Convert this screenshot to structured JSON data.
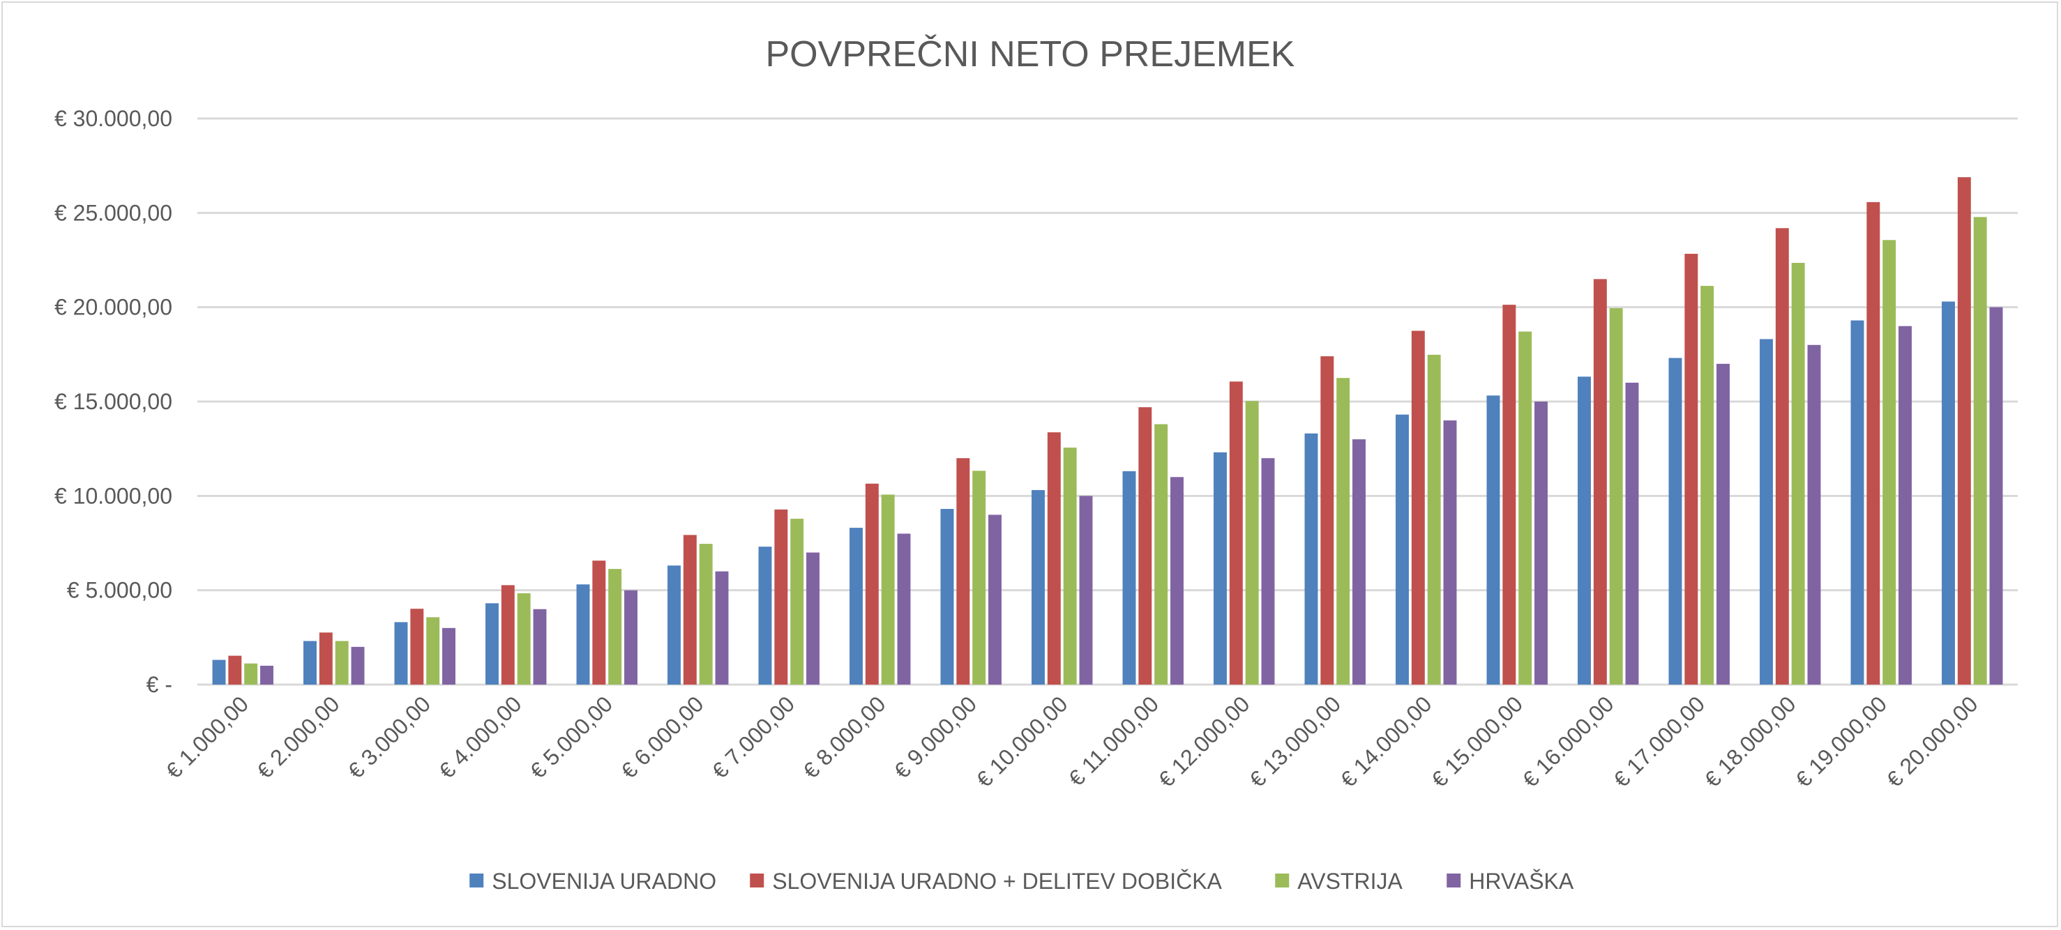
{
  "chart_data": {
    "type": "bar",
    "title": "POVPREČNI NETO PREJEMEK",
    "xlabel": "",
    "ylabel": "",
    "ylim": [
      0,
      30000
    ],
    "y_ticks": [
      0,
      5000,
      10000,
      15000,
      20000,
      25000,
      30000
    ],
    "y_tick_labels": [
      "€ -",
      "€ 5.000,00",
      "€ 10.000,00",
      "€ 15.000,00",
      "€ 20.000,00",
      "€ 25.000,00",
      "€ 30.000,00"
    ],
    "grid": true,
    "legend_position": "bottom",
    "categories": [
      "€ 1.000,00",
      "€ 2.000,00",
      "€ 3.000,00",
      "€ 4.000,00",
      "€ 5.000,00",
      "€ 6.000,00",
      "€ 7.000,00",
      "€ 8.000,00",
      "€ 9.000,00",
      "€ 10.000,00",
      "€ 11.000,00",
      "€ 12.000,00",
      "€ 13.000,00",
      "€ 14.000,00",
      "€ 15.000,00",
      "€ 16.000,00",
      "€ 17.000,00",
      "€ 18.000,00",
      "€ 19.000,00",
      "€ 20.000,00"
    ],
    "series": [
      {
        "name": "SLOVENIJA URADNO",
        "color": "#4f81bd",
        "values": [
          1310,
          2310,
          3310,
          4310,
          5310,
          6310,
          7310,
          8310,
          9310,
          10310,
          11310,
          12310,
          13310,
          14310,
          15320,
          16320,
          17310,
          18310,
          19300,
          20300
        ]
      },
      {
        "name": "SLOVENIJA URADNO + DELITEV DOBIČKA",
        "color": "#c0504d",
        "values": [
          1530,
          2760,
          4020,
          5270,
          6570,
          7930,
          9280,
          10650,
          12000,
          13370,
          14700,
          16060,
          17400,
          18750,
          20130,
          21490,
          22830,
          24190,
          25570,
          26890
        ]
      },
      {
        "name": "AVSTRIJA",
        "color": "#9bbb59",
        "values": [
          1120,
          2310,
          3570,
          4840,
          6130,
          7460,
          8790,
          10070,
          11330,
          12560,
          13800,
          15030,
          16250,
          17480,
          18710,
          19950,
          21130,
          22350,
          23560,
          24780
        ]
      },
      {
        "name": "HRVAŠKA",
        "color": "#8064a2",
        "values": [
          1000,
          2000,
          3000,
          4000,
          5000,
          6000,
          7000,
          8000,
          9000,
          10000,
          11000,
          12000,
          13000,
          14000,
          15000,
          16000,
          17000,
          18000,
          19000,
          20000
        ]
      }
    ]
  }
}
